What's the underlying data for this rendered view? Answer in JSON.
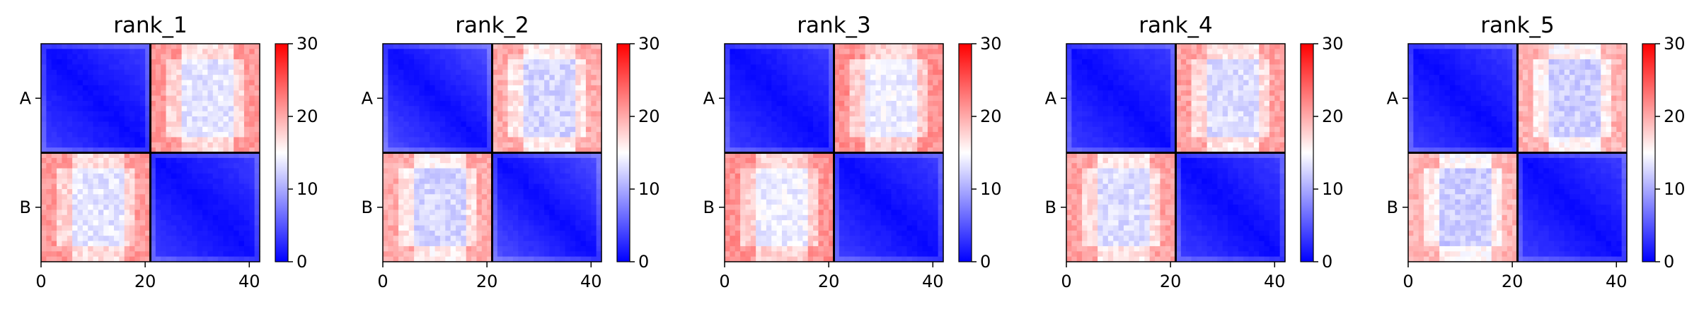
{
  "chart_data": {
    "type": "heatmap",
    "colormap": "bwr",
    "color_range": [
      0,
      30
    ],
    "colorbar_ticks": [
      "0",
      "10",
      "20",
      "30"
    ],
    "x_ticks": [
      "0",
      "20",
      "40"
    ],
    "row_labels": [
      "A",
      "B"
    ],
    "matrix_size": 42,
    "block_boundary": 21,
    "panels": [
      {
        "title": "rank_1",
        "within_block_value": 1.5,
        "between_block_value": 17.5
      },
      {
        "title": "rank_2",
        "within_block_value": 2.0,
        "between_block_value": 16.5
      },
      {
        "title": "rank_3",
        "within_block_value": 1.5,
        "between_block_value": 18.0
      },
      {
        "title": "rank_4",
        "within_block_value": 1.5,
        "between_block_value": 17.0
      },
      {
        "title": "rank_5",
        "within_block_value": 1.5,
        "between_block_value": 16.0
      }
    ]
  }
}
